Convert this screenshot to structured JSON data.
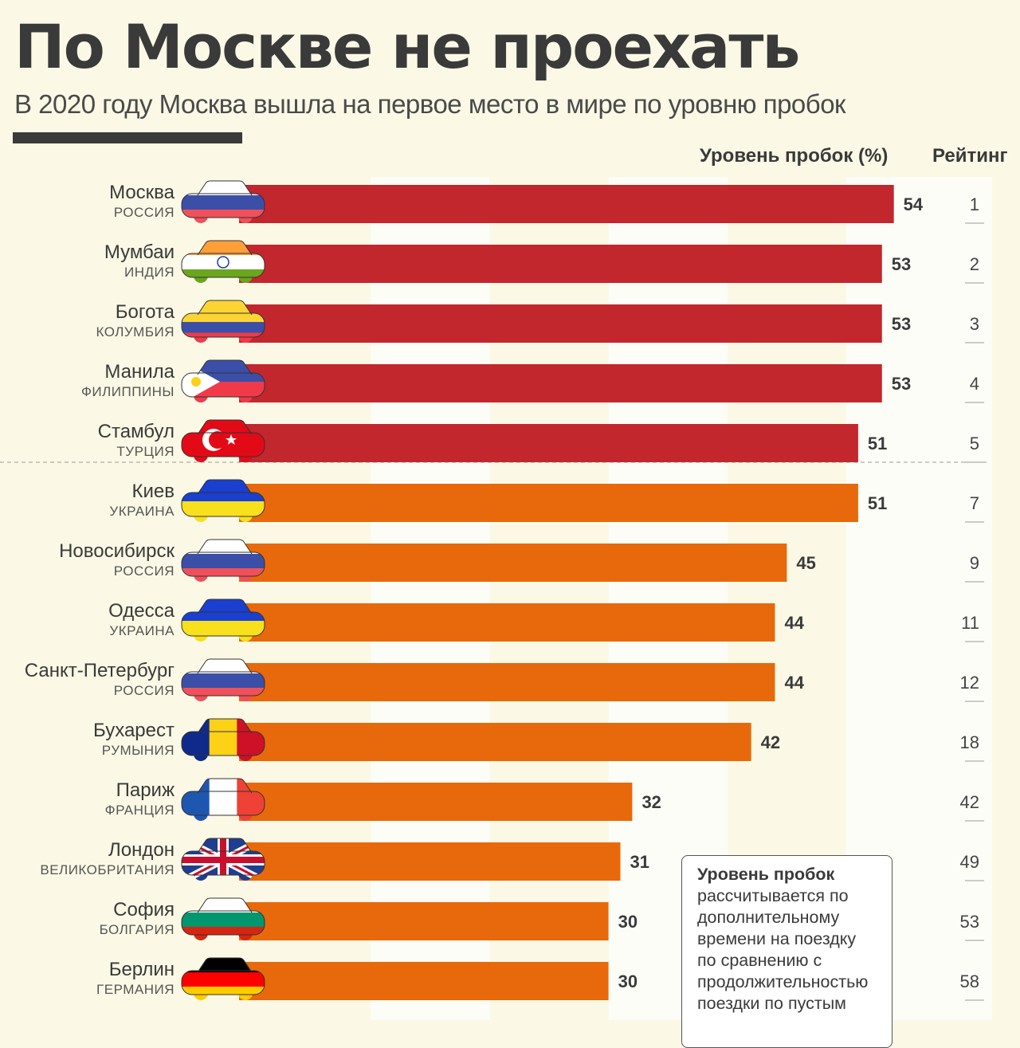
{
  "header": {
    "title": "По Москве не проехать",
    "subtitle": "В 2020 году Москва вышла на первое место в мире по уровню пробок"
  },
  "columns": {
    "level": "Уровень пробок (%)",
    "rating": "Рейтинг"
  },
  "note": {
    "bold": "Уровень пробок",
    "lines": [
      "рассчитывается по",
      "дополнительному",
      "времени на поездку",
      "по сравнению с",
      "продолжительностью",
      "поездки по пустым"
    ]
  },
  "colors": {
    "top5": "#c1272d",
    "rest": "#e8690b",
    "background": "#fbf9e5",
    "stripe": "#fdfdf8"
  },
  "chart_data": {
    "type": "bar",
    "orientation": "horizontal",
    "xlim": [
      0,
      60
    ],
    "grid": "alternating vertical bands every 10",
    "categories": [
      "Москва",
      "Мумбаи",
      "Богота",
      "Манила",
      "Стамбул",
      "Киев",
      "Новосибирск",
      "Одесса",
      "Санкт-Петербург",
      "Бухарест",
      "Париж",
      "Лондон",
      "София",
      "Берлин"
    ],
    "countries": [
      "РОССИЯ",
      "ИНДИЯ",
      "КОЛУМБИЯ",
      "ФИЛИППИНЫ",
      "ТУРЦИЯ",
      "УКРАИНА",
      "РОССИЯ",
      "УКРАИНА",
      "РОССИЯ",
      "РУМЫНИЯ",
      "ФРАНЦИЯ",
      "ВЕЛИКОБРИТАНИЯ",
      "БОЛГАРИЯ",
      "ГЕРМАНИЯ"
    ],
    "values": [
      54,
      53,
      53,
      53,
      51,
      51,
      45,
      44,
      44,
      42,
      32,
      31,
      30,
      30
    ],
    "ranks": [
      "1",
      "2",
      "3",
      "4",
      "5",
      "7",
      "9",
      "11",
      "12",
      "18",
      "42",
      "49",
      "53",
      "58"
    ],
    "flags": [
      {
        "dir": "h",
        "colors": [
          "#ffffff",
          "#3b4fa8",
          "#f0505a"
        ]
      },
      {
        "dir": "h",
        "colors": [
          "#ff9f3a",
          "#ffffff",
          "#6aa61e"
        ],
        "emblem": "chakra"
      },
      {
        "dir": "h",
        "colors": [
          "#fcd535",
          "#fcd535",
          "#3b4fa8",
          "#f03a4a"
        ]
      },
      {
        "dir": "h",
        "colors": [
          "#3b4fa8",
          "#f03a4a"
        ],
        "emblem": "triangle"
      },
      {
        "dir": "h",
        "colors": [
          "#e30a17"
        ],
        "emblem": "crescent"
      },
      {
        "dir": "h",
        "colors": [
          "#1a3fd1",
          "#f8e01c"
        ]
      },
      {
        "dir": "h",
        "colors": [
          "#ffffff",
          "#3b4fa8",
          "#f0505a"
        ]
      },
      {
        "dir": "h",
        "colors": [
          "#1a3fd1",
          "#f8e01c"
        ]
      },
      {
        "dir": "h",
        "colors": [
          "#ffffff",
          "#3b4fa8",
          "#f0505a"
        ]
      },
      {
        "dir": "v",
        "colors": [
          "#0f2a8a",
          "#fcd116",
          "#ce1126"
        ]
      },
      {
        "dir": "v",
        "colors": [
          "#1f56b0",
          "#ffffff",
          "#ef4135"
        ]
      },
      {
        "dir": "h",
        "colors": [
          "#1f3e8f"
        ],
        "emblem": "union"
      },
      {
        "dir": "h",
        "colors": [
          "#ffffff",
          "#00966e",
          "#d62612"
        ]
      },
      {
        "dir": "h",
        "colors": [
          "#000000",
          "#ff0000",
          "#ffcc00"
        ]
      }
    ],
    "highlight_count": 5
  }
}
